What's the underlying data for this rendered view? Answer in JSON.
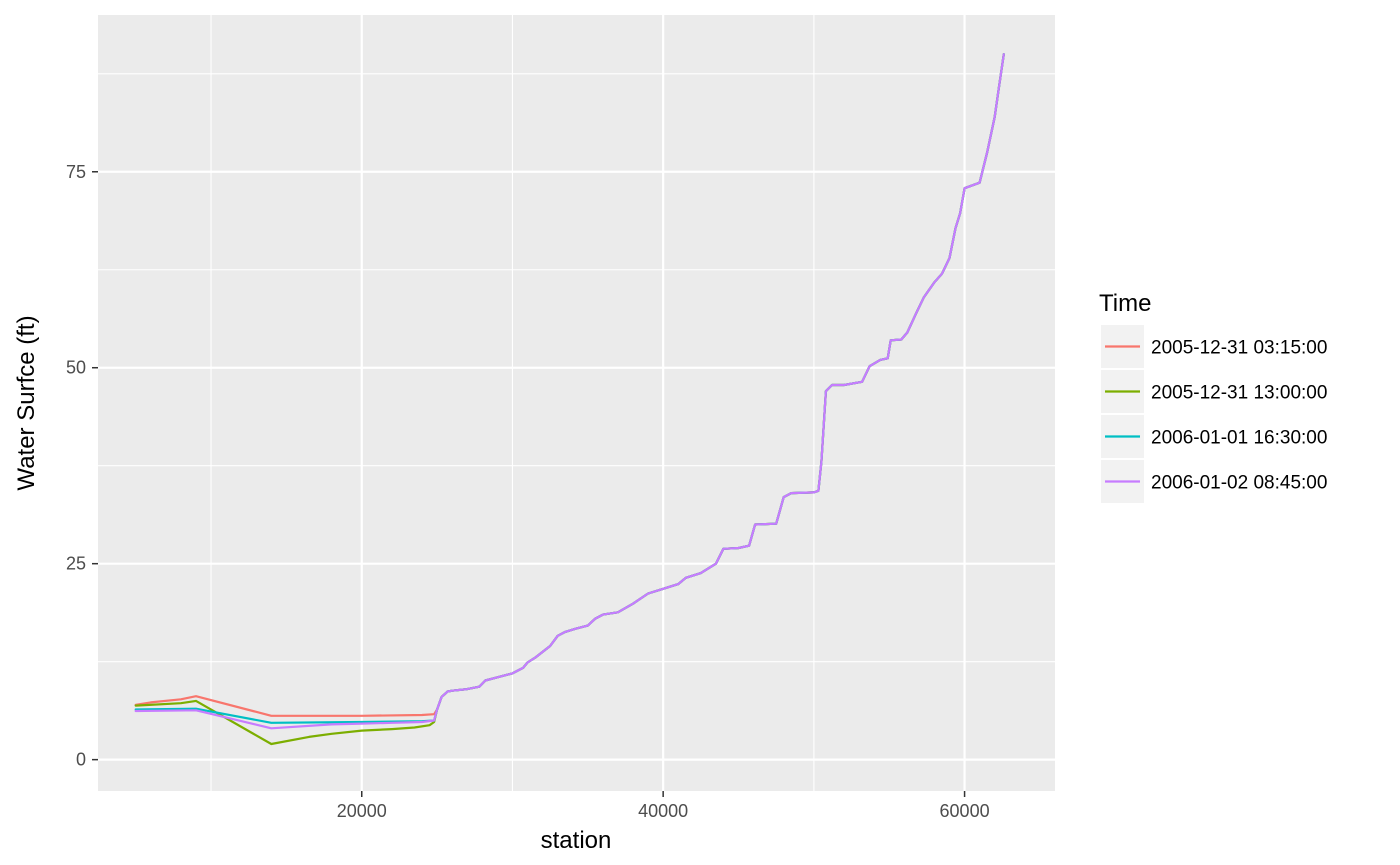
{
  "chart_data": {
    "type": "line",
    "title": "",
    "xlabel": "station",
    "ylabel": "Water Surfce (ft)",
    "xlim": [
      2500,
      66000
    ],
    "ylim": [
      -4,
      95
    ],
    "x_ticks": [
      20000,
      40000,
      60000
    ],
    "y_ticks": [
      0,
      25,
      50,
      75
    ],
    "grid": true,
    "legend": {
      "title": "Time",
      "position": "right"
    },
    "series": [
      {
        "name": "2005-12-31 03:15:00",
        "color": "#F8766D",
        "points": [
          [
            5000,
            7.0
          ],
          [
            6000,
            7.3
          ],
          [
            8000,
            7.7
          ],
          [
            9000,
            8.1
          ],
          [
            14000,
            5.6
          ],
          [
            20000,
            5.6
          ],
          [
            24000,
            5.7
          ],
          [
            24800,
            5.8
          ],
          [
            25000,
            6.4
          ],
          [
            25300,
            8.0
          ],
          [
            25700,
            8.7
          ],
          [
            26000,
            8.8
          ],
          [
            27000,
            9.0
          ],
          [
            27800,
            9.3
          ],
          [
            28200,
            10.1
          ],
          [
            29000,
            10.5
          ],
          [
            30000,
            11.0
          ],
          [
            30700,
            11.7
          ],
          [
            31000,
            12.4
          ],
          [
            31500,
            13.0
          ],
          [
            32500,
            14.5
          ],
          [
            33000,
            15.8
          ],
          [
            33500,
            16.3
          ],
          [
            34200,
            16.7
          ],
          [
            35000,
            17.1
          ],
          [
            35500,
            18.0
          ],
          [
            36000,
            18.5
          ],
          [
            37000,
            18.8
          ],
          [
            38000,
            19.9
          ],
          [
            39000,
            21.2
          ],
          [
            40000,
            21.8
          ],
          [
            41000,
            22.4
          ],
          [
            41500,
            23.2
          ],
          [
            42500,
            23.8
          ],
          [
            43500,
            25.0
          ],
          [
            44000,
            26.9
          ],
          [
            45000,
            27.0
          ],
          [
            45700,
            27.3
          ],
          [
            46100,
            30.0
          ],
          [
            47500,
            30.1
          ],
          [
            48000,
            33.5
          ],
          [
            48500,
            34.0
          ],
          [
            50000,
            34.1
          ],
          [
            50300,
            34.3
          ],
          [
            50500,
            38.0
          ],
          [
            50800,
            47.0
          ],
          [
            51200,
            47.8
          ],
          [
            52000,
            47.8
          ],
          [
            53200,
            48.2
          ],
          [
            53700,
            50.2
          ],
          [
            54400,
            51.0
          ],
          [
            54900,
            51.2
          ],
          [
            55100,
            53.5
          ],
          [
            55800,
            53.6
          ],
          [
            56200,
            54.5
          ],
          [
            56800,
            57.0
          ],
          [
            57300,
            59.0
          ],
          [
            58000,
            60.9
          ],
          [
            58500,
            62.0
          ],
          [
            59000,
            64.0
          ],
          [
            59400,
            67.8
          ],
          [
            59700,
            69.7
          ],
          [
            60000,
            72.9
          ],
          [
            61000,
            73.6
          ],
          [
            61500,
            77.5
          ],
          [
            62000,
            82.0
          ],
          [
            62300,
            86.0
          ],
          [
            62600,
            90.0
          ]
        ]
      },
      {
        "name": "2005-12-31 13:00:00",
        "color": "#7CAE00",
        "points": [
          [
            5000,
            6.9
          ],
          [
            8000,
            7.2
          ],
          [
            9000,
            7.5
          ],
          [
            14000,
            2.0
          ],
          [
            16500,
            2.9
          ],
          [
            18000,
            3.3
          ],
          [
            20000,
            3.7
          ],
          [
            22000,
            3.9
          ],
          [
            23500,
            4.1
          ],
          [
            24500,
            4.4
          ],
          [
            24800,
            4.8
          ],
          [
            25000,
            6.4
          ],
          [
            25300,
            8.0
          ],
          [
            25700,
            8.7
          ],
          [
            26000,
            8.8
          ],
          [
            27000,
            9.0
          ],
          [
            27800,
            9.3
          ],
          [
            28200,
            10.1
          ],
          [
            29000,
            10.5
          ],
          [
            30000,
            11.0
          ],
          [
            30700,
            11.7
          ],
          [
            31000,
            12.4
          ],
          [
            31500,
            13.0
          ],
          [
            32500,
            14.5
          ],
          [
            33000,
            15.8
          ],
          [
            33500,
            16.3
          ],
          [
            34200,
            16.7
          ],
          [
            35000,
            17.1
          ],
          [
            35500,
            18.0
          ],
          [
            36000,
            18.5
          ],
          [
            37000,
            18.8
          ],
          [
            38000,
            19.9
          ],
          [
            39000,
            21.2
          ],
          [
            40000,
            21.8
          ],
          [
            41000,
            22.4
          ],
          [
            41500,
            23.2
          ],
          [
            42500,
            23.8
          ],
          [
            43500,
            25.0
          ],
          [
            44000,
            26.9
          ],
          [
            45000,
            27.0
          ],
          [
            45700,
            27.3
          ],
          [
            46100,
            30.0
          ],
          [
            47500,
            30.1
          ],
          [
            48000,
            33.5
          ],
          [
            48500,
            34.0
          ],
          [
            50000,
            34.1
          ],
          [
            50300,
            34.3
          ],
          [
            50500,
            38.0
          ],
          [
            50800,
            47.0
          ],
          [
            51200,
            47.8
          ],
          [
            52000,
            47.8
          ],
          [
            53200,
            48.2
          ],
          [
            53700,
            50.2
          ],
          [
            54400,
            51.0
          ],
          [
            54900,
            51.2
          ],
          [
            55100,
            53.5
          ],
          [
            55800,
            53.6
          ],
          [
            56200,
            54.5
          ],
          [
            56800,
            57.0
          ],
          [
            57300,
            59.0
          ],
          [
            58000,
            60.9
          ],
          [
            58500,
            62.0
          ],
          [
            59000,
            64.0
          ],
          [
            59400,
            67.8
          ],
          [
            59700,
            69.7
          ],
          [
            60000,
            72.9
          ],
          [
            61000,
            73.6
          ],
          [
            61500,
            77.5
          ],
          [
            62000,
            82.0
          ],
          [
            62300,
            86.0
          ],
          [
            62600,
            90.0
          ]
        ]
      },
      {
        "name": "2006-01-01 16:30:00",
        "color": "#00BFC4",
        "points": [
          [
            5000,
            6.4
          ],
          [
            9000,
            6.5
          ],
          [
            14000,
            4.7
          ],
          [
            20000,
            4.8
          ],
          [
            24000,
            4.9
          ],
          [
            24800,
            5.0
          ],
          [
            25000,
            6.4
          ],
          [
            25300,
            8.0
          ],
          [
            25700,
            8.7
          ],
          [
            26000,
            8.8
          ],
          [
            27000,
            9.0
          ],
          [
            27800,
            9.3
          ],
          [
            28200,
            10.1
          ],
          [
            29000,
            10.5
          ],
          [
            30000,
            11.0
          ],
          [
            30700,
            11.7
          ],
          [
            31000,
            12.4
          ],
          [
            31500,
            13.0
          ],
          [
            32500,
            14.5
          ],
          [
            33000,
            15.8
          ],
          [
            33500,
            16.3
          ],
          [
            34200,
            16.7
          ],
          [
            35000,
            17.1
          ],
          [
            35500,
            18.0
          ],
          [
            36000,
            18.5
          ],
          [
            37000,
            18.8
          ],
          [
            38000,
            19.9
          ],
          [
            39000,
            21.2
          ],
          [
            40000,
            21.8
          ],
          [
            41000,
            22.4
          ],
          [
            41500,
            23.2
          ],
          [
            42500,
            23.8
          ],
          [
            43500,
            25.0
          ],
          [
            44000,
            26.9
          ],
          [
            45000,
            27.0
          ],
          [
            45700,
            27.3
          ],
          [
            46100,
            30.0
          ],
          [
            47500,
            30.1
          ],
          [
            48000,
            33.5
          ],
          [
            48500,
            34.0
          ],
          [
            50000,
            34.1
          ],
          [
            50300,
            34.3
          ],
          [
            50500,
            38.0
          ],
          [
            50800,
            47.0
          ],
          [
            51200,
            47.8
          ],
          [
            52000,
            47.8
          ],
          [
            53200,
            48.2
          ],
          [
            53700,
            50.2
          ],
          [
            54400,
            51.0
          ],
          [
            54900,
            51.2
          ],
          [
            55100,
            53.5
          ],
          [
            55800,
            53.6
          ],
          [
            56200,
            54.5
          ],
          [
            56800,
            57.0
          ],
          [
            57300,
            59.0
          ],
          [
            58000,
            60.9
          ],
          [
            58500,
            62.0
          ],
          [
            59000,
            64.0
          ],
          [
            59400,
            67.8
          ],
          [
            59700,
            69.7
          ],
          [
            60000,
            72.9
          ],
          [
            61000,
            73.6
          ],
          [
            61500,
            77.5
          ],
          [
            62000,
            82.0
          ],
          [
            62300,
            86.0
          ],
          [
            62600,
            90.0
          ]
        ]
      },
      {
        "name": "2006-01-02 08:45:00",
        "color": "#C77CFF",
        "points": [
          [
            5000,
            6.2
          ],
          [
            9000,
            6.3
          ],
          [
            14000,
            4.0
          ],
          [
            18000,
            4.5
          ],
          [
            20000,
            4.6
          ],
          [
            22000,
            4.7
          ],
          [
            24000,
            4.8
          ],
          [
            24800,
            5.0
          ],
          [
            25000,
            6.4
          ],
          [
            25300,
            8.0
          ],
          [
            25700,
            8.7
          ],
          [
            26000,
            8.8
          ],
          [
            27000,
            9.0
          ],
          [
            27800,
            9.3
          ],
          [
            28200,
            10.1
          ],
          [
            29000,
            10.5
          ],
          [
            30000,
            11.0
          ],
          [
            30700,
            11.7
          ],
          [
            31000,
            12.4
          ],
          [
            31500,
            13.0
          ],
          [
            32500,
            14.5
          ],
          [
            33000,
            15.8
          ],
          [
            33500,
            16.3
          ],
          [
            34200,
            16.7
          ],
          [
            35000,
            17.1
          ],
          [
            35500,
            18.0
          ],
          [
            36000,
            18.5
          ],
          [
            37000,
            18.8
          ],
          [
            38000,
            19.9
          ],
          [
            39000,
            21.2
          ],
          [
            40000,
            21.8
          ],
          [
            41000,
            22.4
          ],
          [
            41500,
            23.2
          ],
          [
            42500,
            23.8
          ],
          [
            43500,
            25.0
          ],
          [
            44000,
            26.9
          ],
          [
            45000,
            27.0
          ],
          [
            45700,
            27.3
          ],
          [
            46100,
            30.0
          ],
          [
            47500,
            30.1
          ],
          [
            48000,
            33.5
          ],
          [
            48500,
            34.0
          ],
          [
            50000,
            34.1
          ],
          [
            50300,
            34.3
          ],
          [
            50500,
            38.0
          ],
          [
            50800,
            47.0
          ],
          [
            51200,
            47.8
          ],
          [
            52000,
            47.8
          ],
          [
            53200,
            48.2
          ],
          [
            53700,
            50.2
          ],
          [
            54400,
            51.0
          ],
          [
            54900,
            51.2
          ],
          [
            55100,
            53.5
          ],
          [
            55800,
            53.6
          ],
          [
            56200,
            54.5
          ],
          [
            56800,
            57.0
          ],
          [
            57300,
            59.0
          ],
          [
            58000,
            60.9
          ],
          [
            58500,
            62.0
          ],
          [
            59000,
            64.0
          ],
          [
            59400,
            67.8
          ],
          [
            59700,
            69.7
          ],
          [
            60000,
            72.9
          ],
          [
            61000,
            73.6
          ],
          [
            61500,
            77.5
          ],
          [
            62000,
            82.0
          ],
          [
            62300,
            86.0
          ],
          [
            62600,
            90.0
          ]
        ]
      }
    ]
  }
}
